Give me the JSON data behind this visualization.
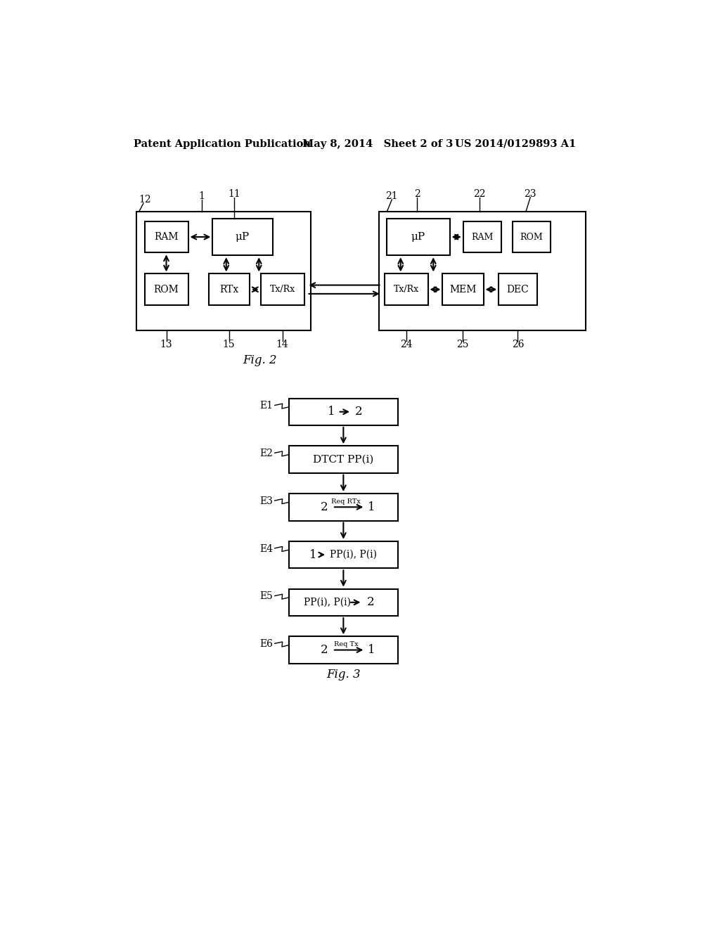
{
  "bg_color": "#ffffff",
  "header_left": "Patent Application Publication",
  "header_mid": "May 8, 2014   Sheet 2 of 3",
  "header_right": "US 2014/0129893 A1",
  "fig2_label": "Fig. 2",
  "fig3_label": "Fig. 3"
}
